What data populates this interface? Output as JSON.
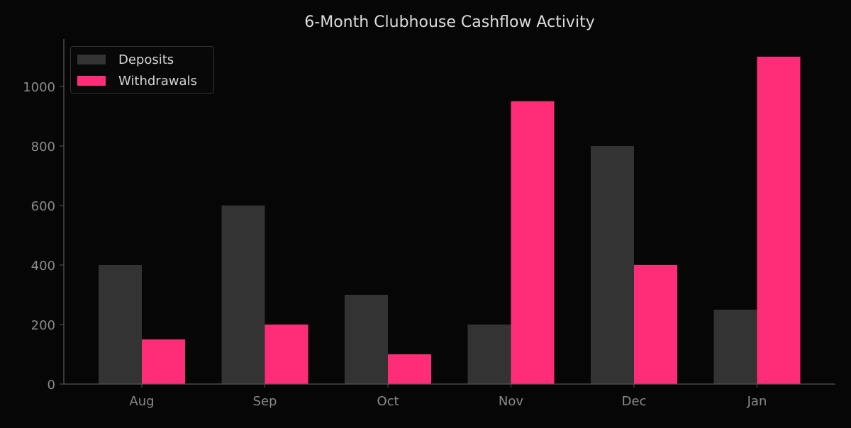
{
  "chart_data": {
    "type": "bar",
    "title": "6-Month Clubhouse Cashflow Activity",
    "xlabel": "",
    "ylabel": "",
    "categories": [
      "Aug",
      "Sep",
      "Oct",
      "Nov",
      "Dec",
      "Jan"
    ],
    "series": [
      {
        "name": "Deposits",
        "color": "#333333",
        "values": [
          400,
          600,
          300,
          200,
          800,
          250
        ]
      },
      {
        "name": "Withdrawals",
        "color": "#ff2d78",
        "values": [
          150,
          200,
          100,
          950,
          400,
          1100
        ]
      }
    ],
    "ylim": [
      0,
      1155
    ],
    "yticks": [
      0,
      200,
      400,
      600,
      800,
      1000
    ],
    "grid": false,
    "legend_position": "upper left"
  },
  "colors": {
    "background": "#060606",
    "axis": "#555555",
    "tick_label": "#8a8a8a",
    "title": "#dcdcdc"
  }
}
